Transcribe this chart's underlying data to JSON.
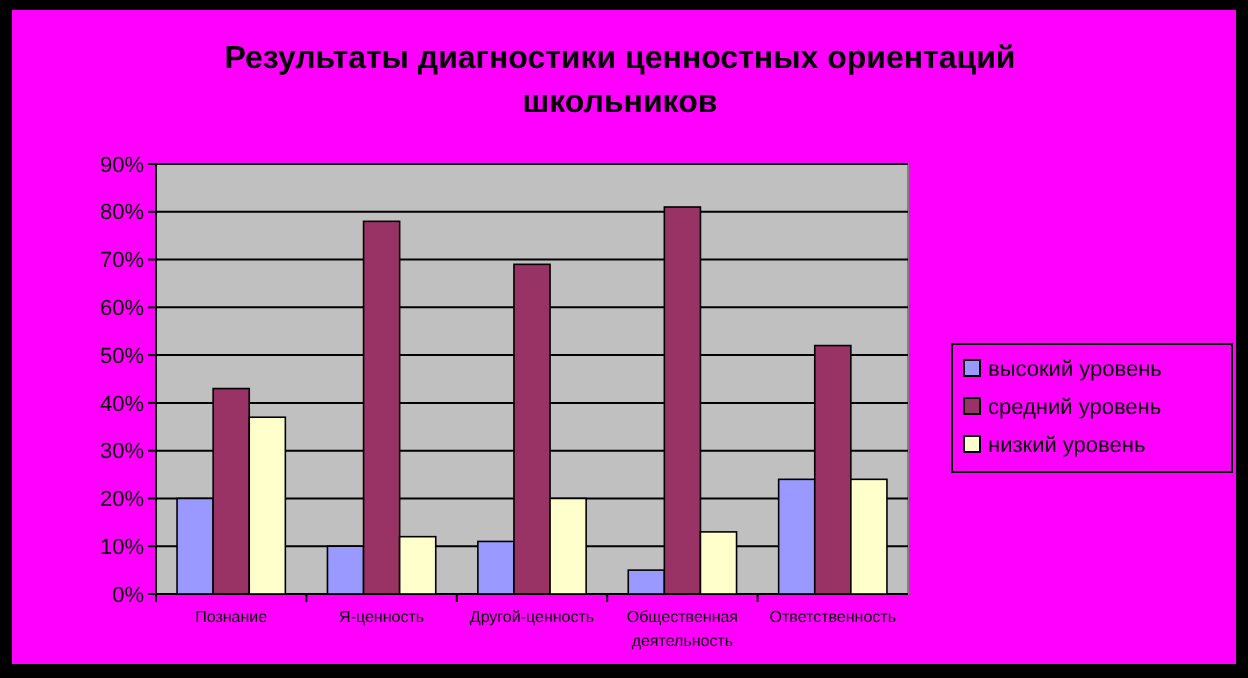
{
  "chart_data": {
    "type": "bar",
    "title": "Результаты диагностики ценностных ориентаций школьников",
    "categories": [
      "Познание",
      "Я-ценность",
      "Другой-ценность",
      "Общественная деятельность",
      "Ответственность"
    ],
    "series": [
      {
        "name": "высокий уровень",
        "color": "#9999ff",
        "values": [
          20,
          10,
          11,
          5,
          24
        ]
      },
      {
        "name": "средний уровень",
        "color": "#993366",
        "values": [
          43,
          78,
          69,
          81,
          52
        ]
      },
      {
        "name": "низкий уровень",
        "color": "#ffffcc",
        "values": [
          37,
          12,
          20,
          13,
          24
        ]
      }
    ],
    "ylim": [
      0,
      90
    ],
    "yticks": [
      {
        "value": 0,
        "label": "0%"
      },
      {
        "value": 10,
        "label": "10%"
      },
      {
        "value": 20,
        "label": "20%"
      },
      {
        "value": 30,
        "label": "30%"
      },
      {
        "value": 40,
        "label": "40%"
      },
      {
        "value": 50,
        "label": "50%"
      },
      {
        "value": 60,
        "label": "60%"
      },
      {
        "value": 70,
        "label": "70%"
      },
      {
        "value": 80,
        "label": "80%"
      },
      {
        "value": 90,
        "label": "90%"
      }
    ],
    "grid": "y",
    "legend": "right"
  }
}
